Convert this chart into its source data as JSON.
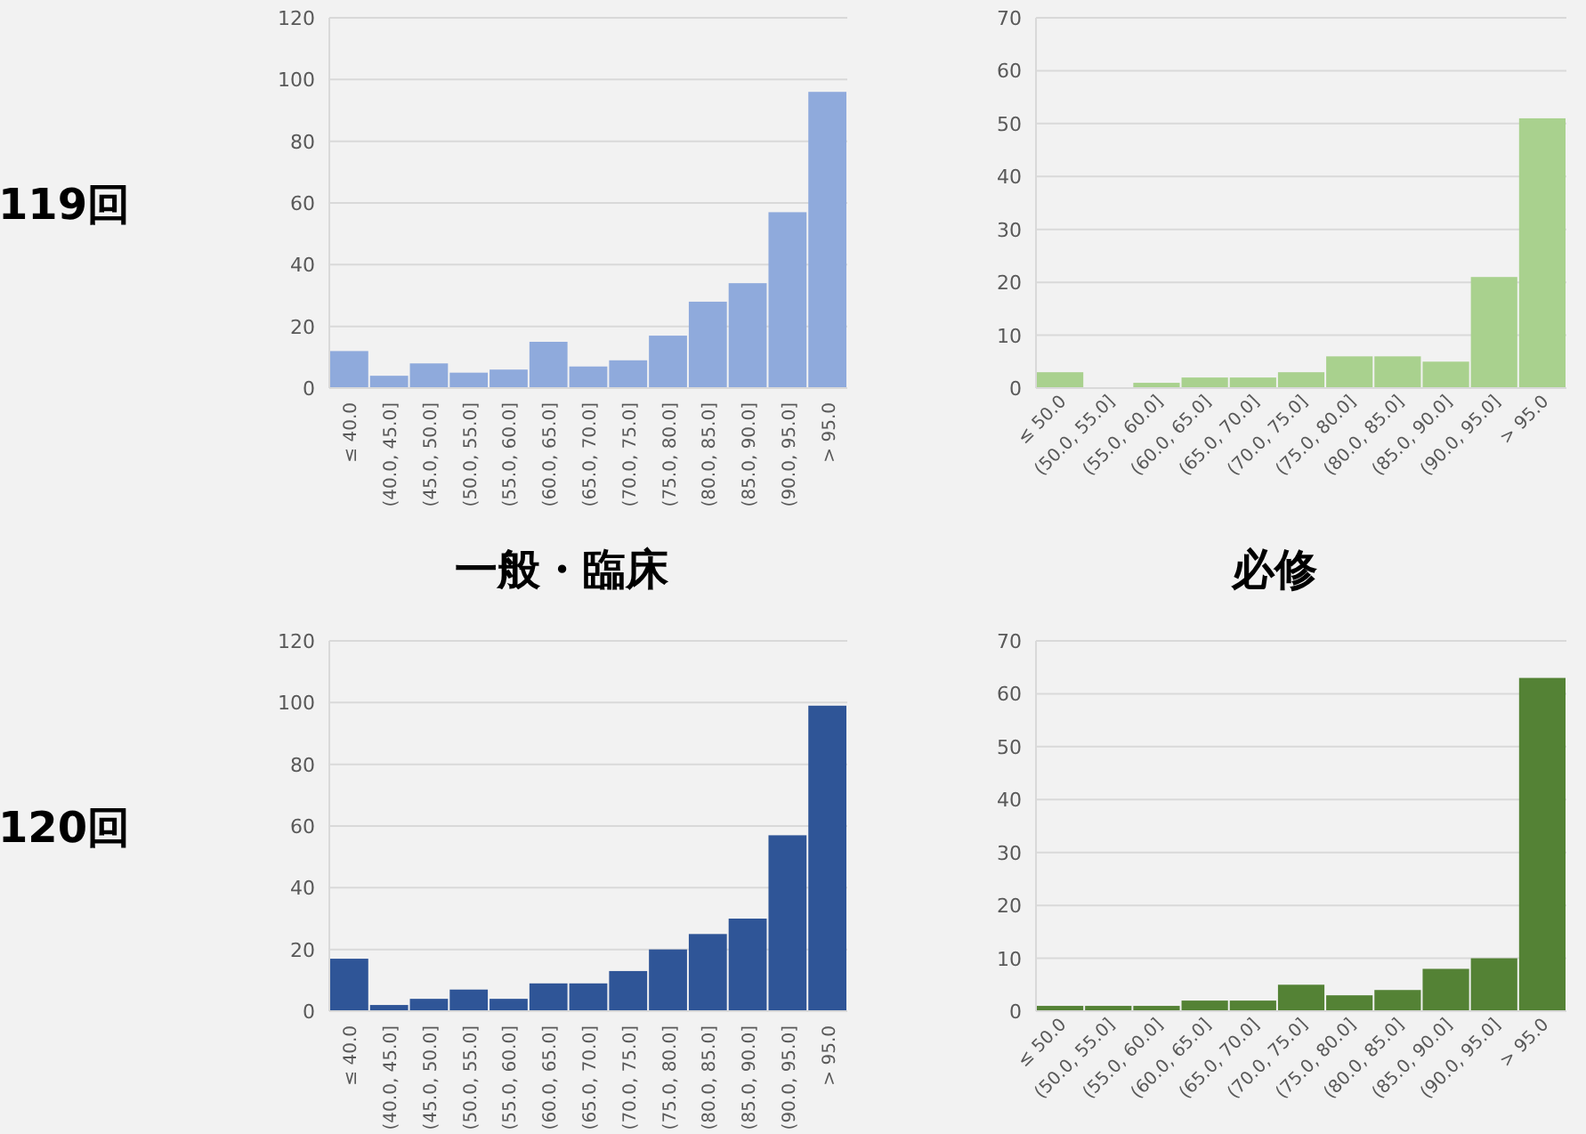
{
  "chart_data": [
    {
      "type": "bar",
      "xlabel": "一般・臨床",
      "ylabel": "119回",
      "categories": [
        "≤ 40.0",
        "(40.0, 45.0]",
        "(45.0, 50.0]",
        "(50.0, 55.0]",
        "(55.0, 60.0]",
        "(60.0, 65.0]",
        "(65.0, 70.0]",
        "(70.0, 75.0]",
        "(75.0, 80.0]",
        "(80.0, 85.0]",
        "(85.0, 90.0]",
        "(90.0, 95.0]",
        "> 95.0"
      ],
      "values": [
        12,
        4,
        8,
        5,
        6,
        15,
        7,
        9,
        17,
        28,
        34,
        57,
        96
      ],
      "color": "#8faadc",
      "ylim": [
        0,
        120
      ],
      "yticks": [
        0,
        20,
        40,
        60,
        80,
        100,
        120
      ],
      "grid": "y"
    },
    {
      "type": "bar",
      "xlabel": "必修",
      "categories": [
        "≤ 50.0",
        "(50.0, 55.0]",
        "(55.0, 60.0]",
        "(60.0, 65.0]",
        "(65.0, 70.0]",
        "(70.0, 75.0]",
        "(75.0, 80.0]",
        "(80.0, 85.0]",
        "(85.0, 90.0]",
        "(90.0, 95.0]",
        "> 95.0"
      ],
      "values": [
        3,
        0,
        1,
        2,
        2,
        3,
        6,
        6,
        5,
        21,
        51
      ],
      "color": "#a9d18e",
      "ylim": [
        0,
        70
      ],
      "yticks": [
        0,
        10,
        20,
        30,
        40,
        50,
        60,
        70
      ],
      "grid": "y"
    },
    {
      "type": "bar",
      "ylabel": "120回",
      "categories": [
        "≤ 40.0",
        "(40.0, 45.0]",
        "(45.0, 50.0]",
        "(50.0, 55.0]",
        "(55.0, 60.0]",
        "(60.0, 65.0]",
        "(65.0, 70.0]",
        "(70.0, 75.0]",
        "(75.0, 80.0]",
        "(80.0, 85.0]",
        "(85.0, 90.0]",
        "(90.0, 95.0]",
        "> 95.0"
      ],
      "values": [
        17,
        2,
        4,
        7,
        4,
        9,
        9,
        13,
        20,
        25,
        30,
        57,
        99
      ],
      "color": "#2f5597",
      "ylim": [
        0,
        120
      ],
      "yticks": [
        0,
        20,
        40,
        60,
        80,
        100,
        120
      ],
      "grid": "y"
    },
    {
      "type": "bar",
      "categories": [
        "≤ 50.0",
        "(50.0, 55.0]",
        "(55.0, 60.0]",
        "(60.0, 65.0]",
        "(65.0, 70.0]",
        "(70.0, 75.0]",
        "(75.0, 80.0]",
        "(80.0, 85.0]",
        "(85.0, 90.0]",
        "(90.0, 95.0]",
        "> 95.0"
      ],
      "values": [
        1,
        1,
        1,
        2,
        2,
        5,
        3,
        4,
        8,
        10,
        63
      ],
      "color": "#548235",
      "ylim": [
        0,
        70
      ],
      "yticks": [
        0,
        10,
        20,
        30,
        40,
        50,
        60,
        70
      ],
      "grid": "y"
    }
  ]
}
